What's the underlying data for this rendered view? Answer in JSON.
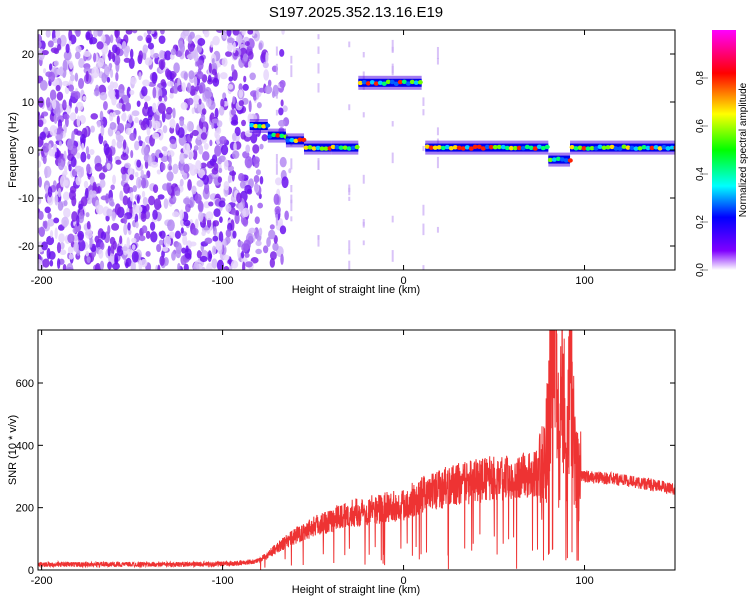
{
  "title": "S197.2025.352.13.16.E19",
  "chart_data": [
    {
      "type": "heatmap",
      "xlabel": "Height of straight line (km)",
      "ylabel": "Frequency (Hz)",
      "xlim": [
        -202,
        150
      ],
      "ylim": [
        -25,
        25
      ],
      "x_ticks": [
        -200,
        -100,
        0,
        100
      ],
      "x_tick_labels": [
        "-200",
        "-100",
        "0",
        "100"
      ],
      "y_ticks": [
        -20,
        -10,
        0,
        10,
        20
      ],
      "y_tick_labels": [
        "-20",
        "-10",
        "0",
        "10",
        "20"
      ],
      "colorbar": {
        "label": "Normalized spectral amplitude",
        "range": [
          0,
          1
        ],
        "ticks": [
          0,
          0.2,
          0.4,
          0.6,
          0.8
        ],
        "tick_labels": [
          "0.0",
          "0.2",
          "0.4",
          "0.6",
          "0.8"
        ],
        "colormap": [
          "#ffffff",
          "#6000ff",
          "#0000ff",
          "#00ffff",
          "#00ff00",
          "#ffff00",
          "#ff0000",
          "#ff00ff"
        ]
      },
      "ridge": [
        {
          "x": [
            -85,
            -75
          ],
          "freq": 5
        },
        {
          "x": [
            -75,
            -65
          ],
          "freq": 3
        },
        {
          "x": [
            -65,
            -55
          ],
          "freq": 2
        },
        {
          "x": [
            -55,
            -40
          ],
          "freq": 0.5
        },
        {
          "x": [
            -40,
            -25
          ],
          "freq": 0.5
        },
        {
          "x": [
            -25,
            10
          ],
          "freq": 14
        },
        {
          "x": [
            12,
            80
          ],
          "freq": 0.5
        },
        {
          "x": [
            80,
            92
          ],
          "freq": -2
        },
        {
          "x": [
            92,
            150
          ],
          "freq": 0.5
        }
      ],
      "grid": false
    },
    {
      "type": "line",
      "xlabel": "Height of straight line (km)",
      "ylabel": "SNR (10 * v/v)",
      "xlim": [
        -202,
        150
      ],
      "ylim": [
        0,
        770
      ],
      "x_ticks": [
        -200,
        -100,
        0,
        100
      ],
      "x_tick_labels": [
        "-200",
        "-100",
        "0",
        "100"
      ],
      "y_ticks": [
        0,
        200,
        400,
        600
      ],
      "y_tick_labels": [
        "0",
        "200",
        "400",
        "600"
      ],
      "series": [
        {
          "color": "#ee3333",
          "x": [
            -202,
            -180,
            -160,
            -140,
            -120,
            -100,
            -90,
            -80,
            -70,
            -60,
            -50,
            -40,
            -30,
            -20,
            -10,
            0,
            10,
            20,
            30,
            40,
            50,
            60,
            70,
            78,
            82,
            84,
            86,
            88,
            90,
            92,
            95,
            100,
            110,
            120,
            130,
            140,
            150
          ],
          "values": [
            18,
            18,
            18,
            18,
            18,
            19,
            22,
            30,
            70,
            110,
            140,
            160,
            180,
            190,
            200,
            210,
            240,
            260,
            275,
            285,
            295,
            300,
            305,
            310,
            650,
            770,
            330,
            700,
            250,
            720,
            300,
            300,
            295,
            290,
            280,
            270,
            260
          ]
        }
      ],
      "grid": false
    }
  ]
}
